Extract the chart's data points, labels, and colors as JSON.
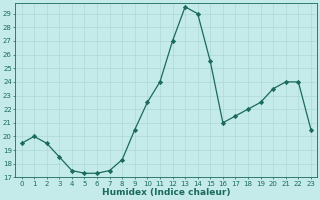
{
  "x": [
    0,
    1,
    2,
    3,
    4,
    5,
    6,
    7,
    8,
    9,
    10,
    11,
    12,
    13,
    14,
    15,
    16,
    17,
    18,
    19,
    20,
    21,
    22,
    23
  ],
  "y": [
    19.5,
    20.0,
    19.5,
    18.5,
    17.5,
    17.3,
    17.3,
    17.5,
    18.3,
    20.5,
    22.5,
    24.0,
    27.0,
    29.5,
    29.0,
    25.5,
    21.0,
    21.5,
    22.0,
    22.5,
    23.5,
    24.0,
    24.0,
    20.5
  ],
  "xlabel": "Humidex (Indice chaleur)",
  "bg_color": "#c5eaea",
  "grid_color": "#b0d8d8",
  "line_color": "#1a6b5a",
  "marker_color": "#1a6b5a",
  "ylim": [
    17,
    29.8
  ],
  "xlim": [
    -0.5,
    23.5
  ],
  "yticks": [
    17,
    18,
    19,
    20,
    21,
    22,
    23,
    24,
    25,
    26,
    27,
    28,
    29
  ],
  "xticks": [
    0,
    1,
    2,
    3,
    4,
    5,
    6,
    7,
    8,
    9,
    10,
    11,
    12,
    13,
    14,
    15,
    16,
    17,
    18,
    19,
    20,
    21,
    22,
    23
  ],
  "tick_fontsize": 5,
  "xlabel_fontsize": 6.5,
  "linewidth": 0.9,
  "markersize": 2.2
}
